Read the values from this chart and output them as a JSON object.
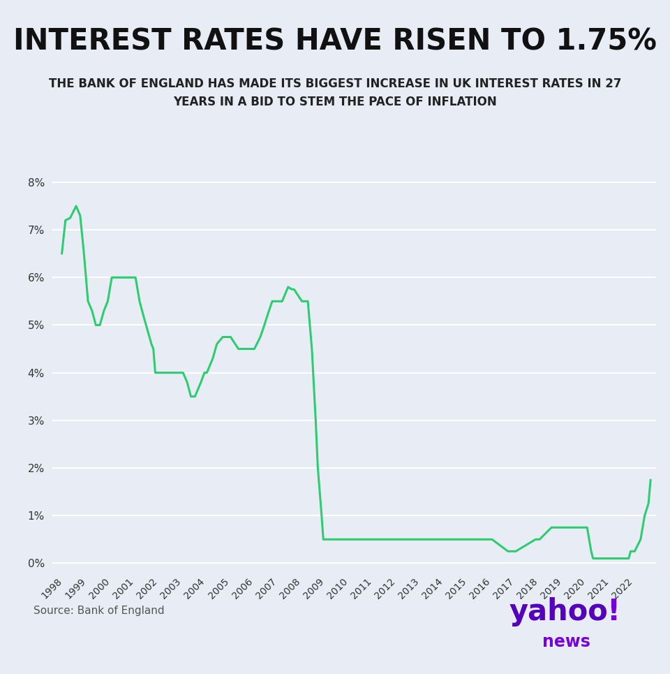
{
  "title": "INTEREST RATES HAVE RISEN TO 1.75%",
  "subtitle": "THE BANK OF ENGLAND HAS MADE ITS BIGGEST INCREASE IN UK INTEREST RATES IN 27\nYEARS IN A BID TO STEM THE PACE OF INFLATION",
  "source": "Source: Bank of England",
  "background_color": "#e8edf5",
  "line_color": "#2ecc71",
  "title_color": "#111111",
  "subtitle_color": "#222222",
  "source_color": "#555555",
  "grid_color": "#ffffff",
  "line_width": 2.2,
  "ylim_min": -0.002,
  "ylim_max": 0.086,
  "ytick_values": [
    0.0,
    0.01,
    0.02,
    0.03,
    0.04,
    0.05,
    0.06,
    0.07,
    0.08
  ],
  "ytick_labels": [
    "0%",
    "1%",
    "2%",
    "3%",
    "4%",
    "5%",
    "6%",
    "7%",
    "8%"
  ],
  "x_years": [
    1998,
    1999,
    2000,
    2001,
    2002,
    2003,
    2004,
    2005,
    2006,
    2007,
    2008,
    2009,
    2010,
    2011,
    2012,
    2013,
    2014,
    2015,
    2016,
    2017,
    2018,
    2019,
    2020,
    2021,
    2022
  ],
  "dates": [
    1997.9,
    1998.05,
    1998.25,
    1998.5,
    1998.67,
    1998.83,
    1999.0,
    1999.17,
    1999.33,
    1999.5,
    1999.67,
    1999.83,
    2000.0,
    2000.42,
    2000.67,
    2000.83,
    2001.0,
    2001.17,
    2001.33,
    2001.5,
    2001.67,
    2001.75,
    2001.83,
    2002.0,
    2002.5,
    2002.83,
    2003.0,
    2003.17,
    2003.33,
    2003.5,
    2003.75,
    2003.9,
    2004.0,
    2004.25,
    2004.42,
    2004.5,
    2004.67,
    2004.83,
    2005.0,
    2005.33,
    2005.5,
    2005.75,
    2006.0,
    2006.25,
    2006.42,
    2006.58,
    2006.75,
    2006.9,
    2007.0,
    2007.17,
    2007.42,
    2007.58,
    2007.67,
    2008.0,
    2008.25,
    2008.42,
    2008.58,
    2008.67,
    2008.75,
    2008.83,
    2008.9,
    2009.0,
    2009.17,
    2009.33,
    2009.5,
    2010.0,
    2016.0,
    2016.67,
    2017.0,
    2017.83,
    2018.0,
    2018.5,
    2018.58,
    2019.0,
    2019.5,
    2019.75,
    2020.0,
    2020.17,
    2020.25,
    2020.42,
    2021.0,
    2021.75,
    2021.83,
    2022.0,
    2022.25,
    2022.42,
    2022.58,
    2022.67
  ],
  "rates": [
    0.065,
    0.072,
    0.0725,
    0.075,
    0.073,
    0.065,
    0.055,
    0.053,
    0.05,
    0.05,
    0.053,
    0.055,
    0.06,
    0.06,
    0.06,
    0.06,
    0.06,
    0.055,
    0.052,
    0.049,
    0.046,
    0.045,
    0.04,
    0.04,
    0.04,
    0.04,
    0.04,
    0.038,
    0.035,
    0.035,
    0.038,
    0.04,
    0.04,
    0.043,
    0.046,
    0.0465,
    0.0475,
    0.0475,
    0.0475,
    0.045,
    0.045,
    0.045,
    0.045,
    0.0475,
    0.05,
    0.0525,
    0.055,
    0.055,
    0.055,
    0.055,
    0.058,
    0.0575,
    0.0575,
    0.055,
    0.055,
    0.045,
    0.03,
    0.02,
    0.015,
    0.01,
    0.005,
    0.005,
    0.005,
    0.005,
    0.005,
    0.005,
    0.005,
    0.0025,
    0.0025,
    0.005,
    0.005,
    0.0075,
    0.0075,
    0.0075,
    0.0075,
    0.0075,
    0.0075,
    0.0025,
    0.001,
    0.001,
    0.001,
    0.001,
    0.0025,
    0.0025,
    0.005,
    0.01,
    0.0125,
    0.0175
  ],
  "yahoo_color": "#5500bb",
  "news_color": "#7700dd",
  "exclaim_color": "#7700dd"
}
